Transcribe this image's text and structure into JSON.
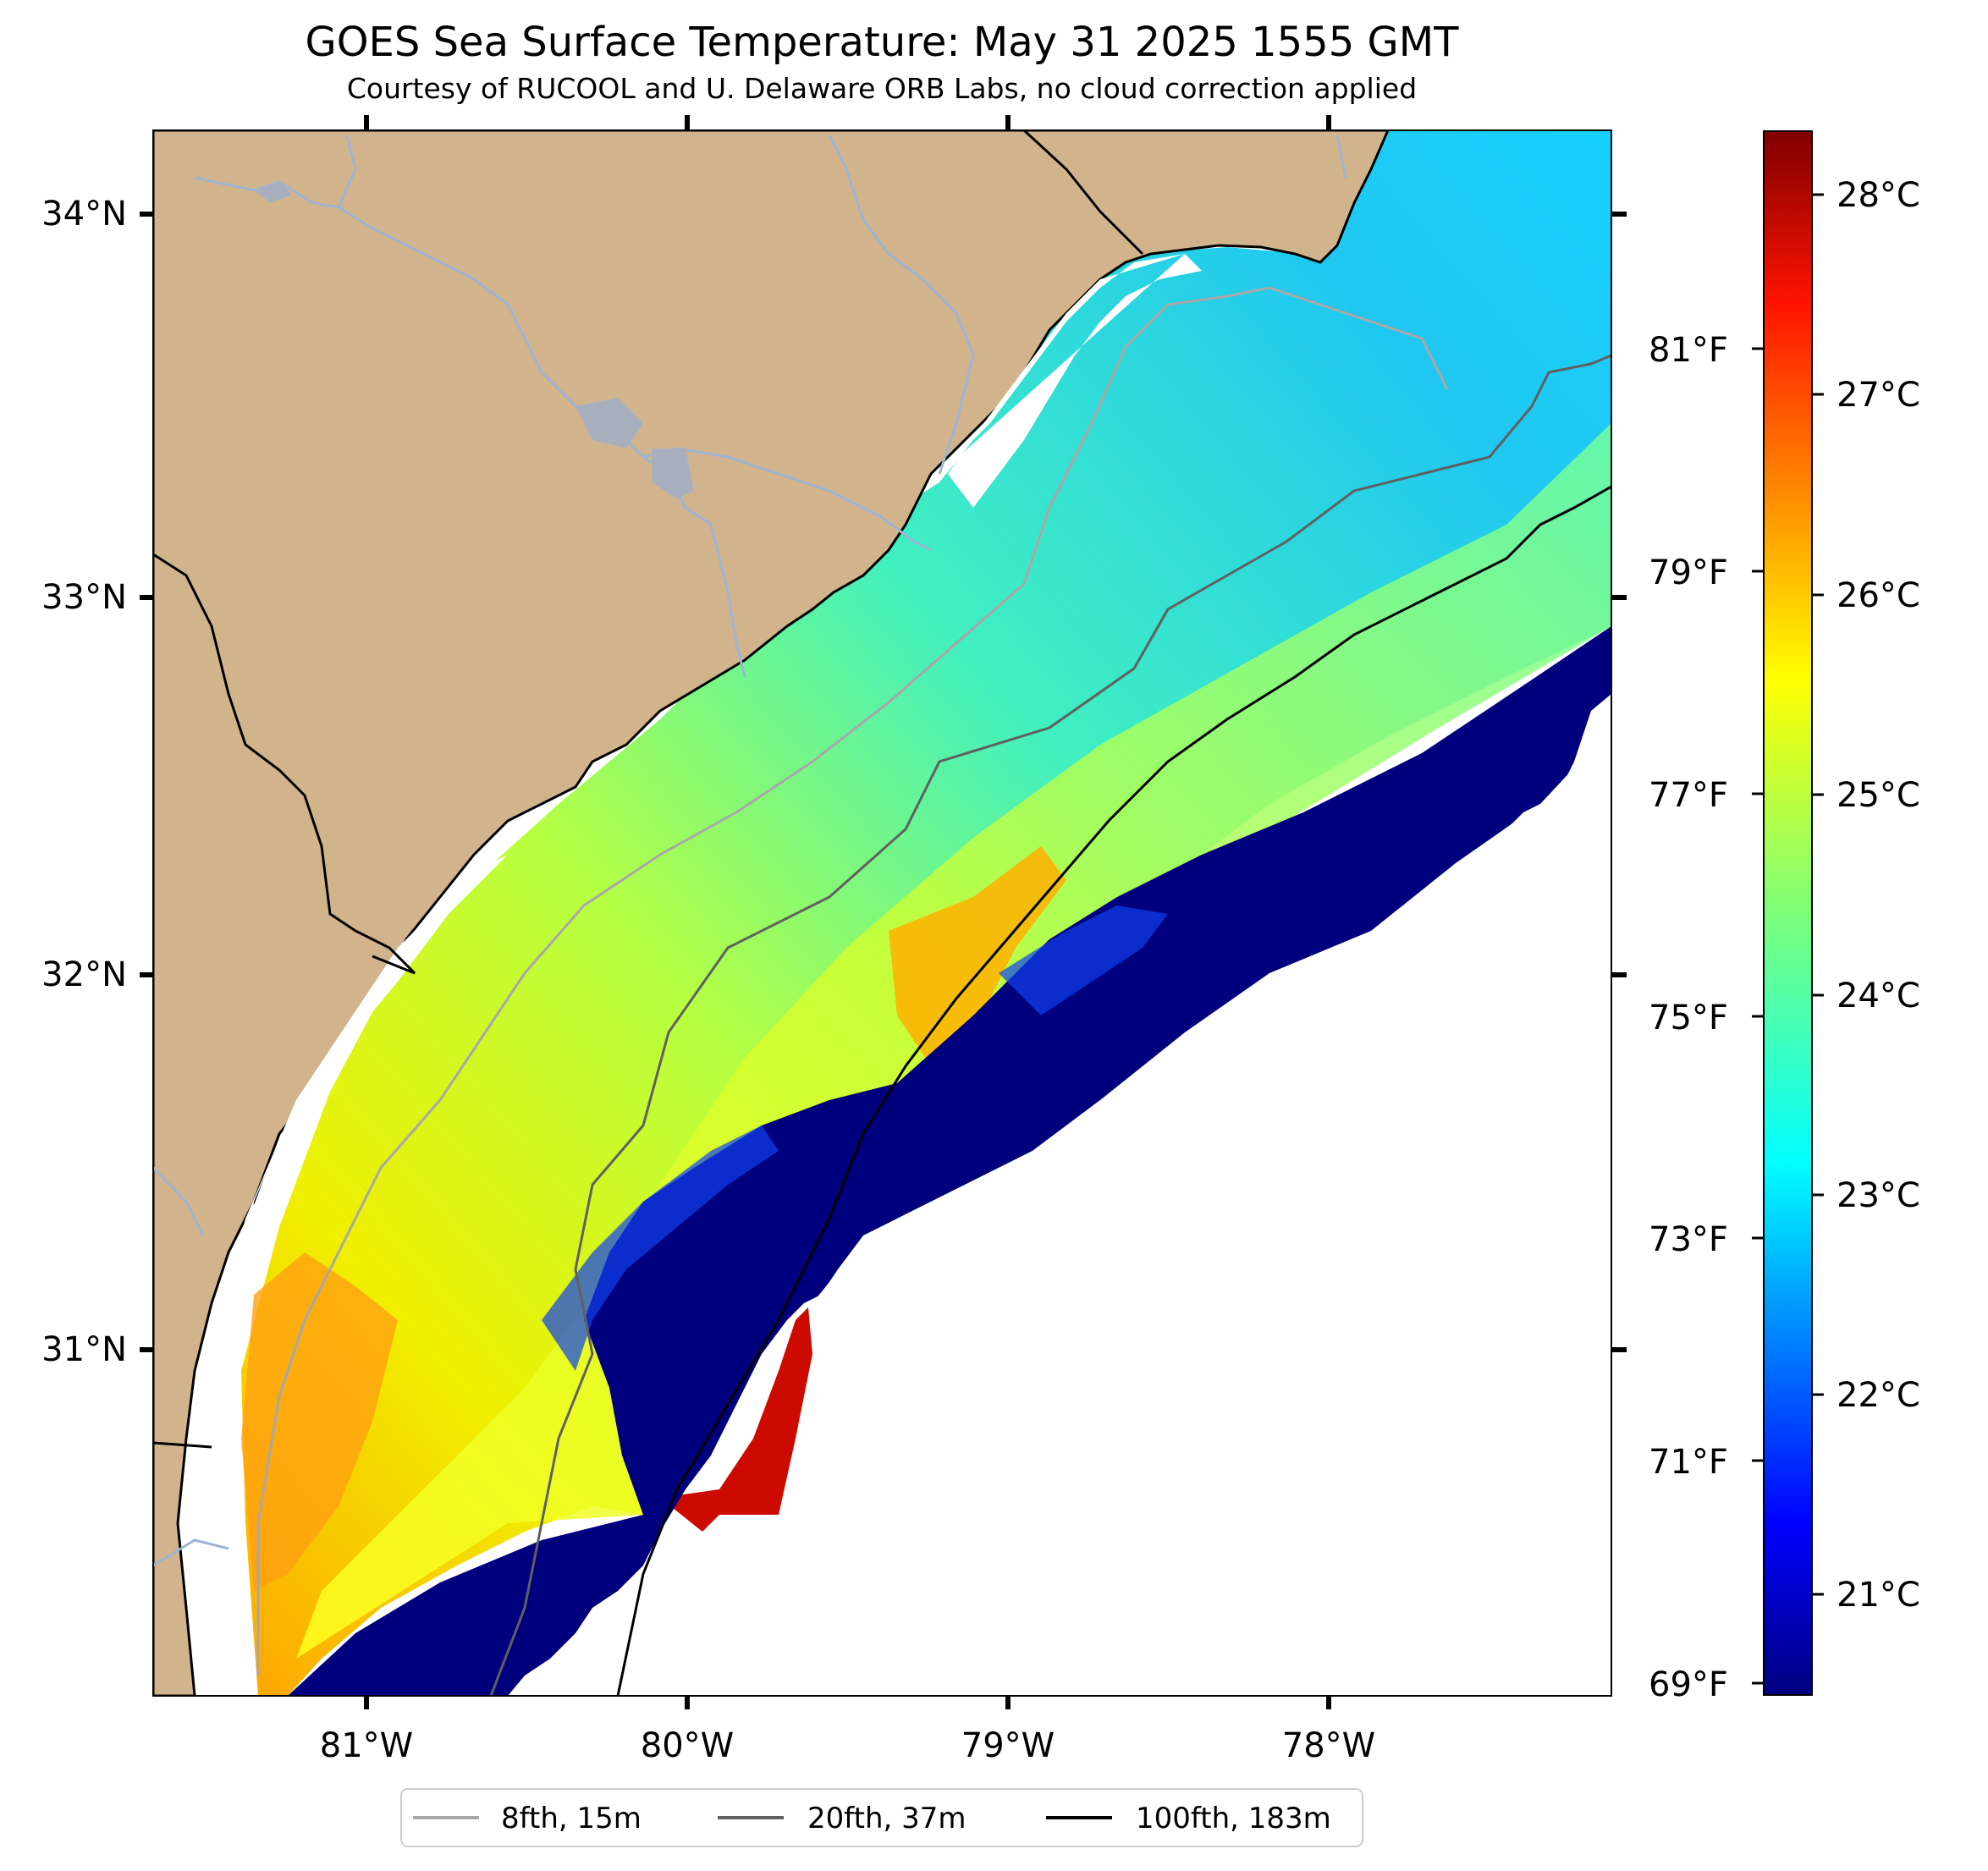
{
  "title": "GOES Sea Surface Temperature: May 31 2025 1555 GMT",
  "subtitle": "Courtesy of RUCOOL and U. Delaware ORB Labs, no cloud correction applied",
  "colors": {
    "land": "#d2b48c",
    "coastline": "#000000",
    "rivers": "#9db4d2",
    "isobath_8fth": "#a8a8a8",
    "isobath_20fth": "#606060",
    "isobath_100fth": "#000000",
    "no_data": "#ffffff"
  },
  "map": {
    "lon_labels": [
      "81°W",
      "80°W",
      "79°W",
      "78°W"
    ],
    "lat_labels": [
      "34°N",
      "33°N",
      "32°N",
      "31°N"
    ]
  },
  "colorbar": {
    "celsius_labels": [
      "28°C",
      "27°C",
      "26°C",
      "25°C",
      "24°C",
      "23°C",
      "22°C",
      "21°C"
    ],
    "fahrenheit_labels": [
      "81°F",
      "79°F",
      "77°F",
      "75°F",
      "73°F",
      "71°F",
      "69°F"
    ],
    "colormap": "jet"
  },
  "legend": {
    "items": [
      {
        "label": "8fth, 15m",
        "color": "#a8a8a8"
      },
      {
        "label": "20fth, 37m",
        "color": "#606060"
      },
      {
        "label": "100fth, 183m",
        "color": "#000000"
      }
    ]
  }
}
